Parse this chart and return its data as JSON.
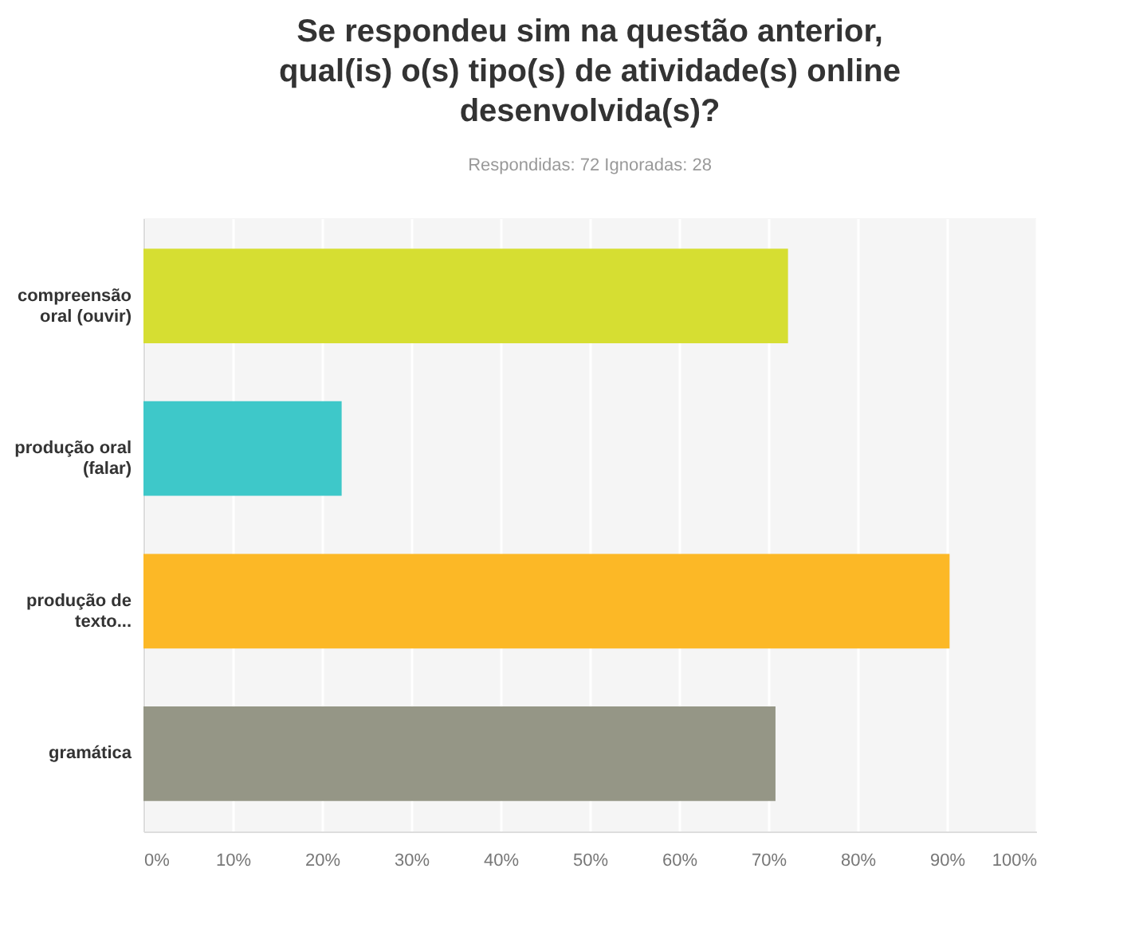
{
  "chart_data": {
    "type": "bar",
    "orientation": "horizontal",
    "title": "Se respondeu sim na questão anterior, qual(is) o(s) tipo(s) de atividade(s) online desenvolvida(s)?",
    "subtitle": "Respondidas: 72   Ignoradas: 28",
    "categories": [
      "compreensão oral (ouvir)",
      "produção oral (falar)",
      "produção de texto...",
      "gramática"
    ],
    "values": [
      72.2,
      22.2,
      90.3,
      70.8
    ],
    "colors": [
      "#d6de32",
      "#3ec8c9",
      "#fcb826",
      "#959686"
    ],
    "xlim": [
      0,
      100
    ],
    "xticks": [
      {
        "value": 0,
        "label": "0%"
      },
      {
        "value": 10,
        "label": "10%"
      },
      {
        "value": 20,
        "label": "20%"
      },
      {
        "value": 30,
        "label": "30%"
      },
      {
        "value": 40,
        "label": "40%"
      },
      {
        "value": 50,
        "label": "50%"
      },
      {
        "value": 60,
        "label": "60%"
      },
      {
        "value": 70,
        "label": "70%"
      },
      {
        "value": 80,
        "label": "80%"
      },
      {
        "value": 90,
        "label": "90%"
      },
      {
        "value": 100,
        "label": "100%"
      }
    ],
    "grid": "x"
  }
}
